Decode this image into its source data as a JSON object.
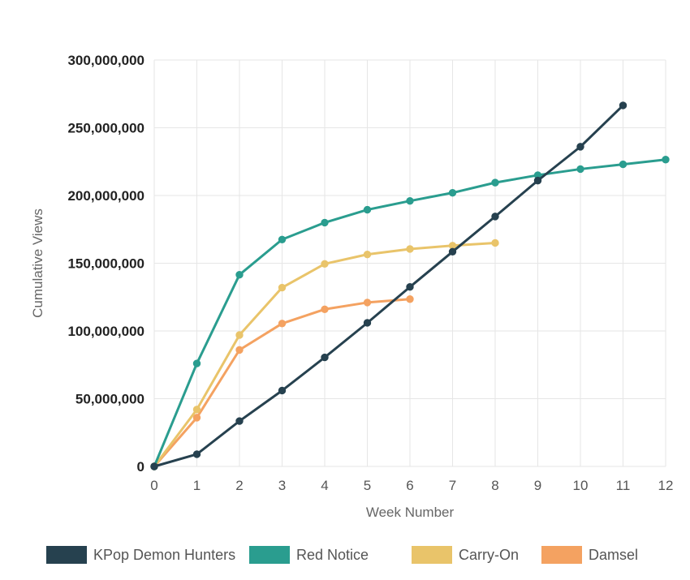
{
  "chart_data": {
    "type": "line",
    "title": "",
    "xlabel": "Week Number",
    "ylabel": "Cumulative Views",
    "xlim": [
      0,
      12
    ],
    "ylim": [
      0,
      300000000
    ],
    "x_ticks": [
      0,
      1,
      2,
      3,
      4,
      5,
      6,
      7,
      8,
      9,
      10,
      11,
      12
    ],
    "y_ticks": [
      0,
      50000000,
      100000000,
      150000000,
      200000000,
      250000000,
      300000000
    ],
    "y_tick_labels": [
      "0",
      "50,000,000",
      "100,000,000",
      "150,000,000",
      "200,000,000",
      "250,000,000",
      "300,000,000"
    ],
    "grid": true,
    "legend_position": "bottom",
    "series": [
      {
        "name": "KPop Demon Hunters",
        "color": "#26414f",
        "x": [
          0,
          1,
          2,
          3,
          4,
          5,
          6,
          7,
          8,
          9,
          10,
          11
        ],
        "values": [
          0,
          9000000,
          33500000,
          56000000,
          80500000,
          106000000,
          132500000,
          158500000,
          184500000,
          211000000,
          236000000,
          266500000
        ]
      },
      {
        "name": "Red Notice",
        "color": "#2a9d8f",
        "x": [
          0,
          1,
          2,
          3,
          4,
          5,
          6,
          7,
          8,
          9,
          10,
          11,
          12
        ],
        "values": [
          0,
          76000000,
          141500000,
          167500000,
          180000000,
          189500000,
          196000000,
          202000000,
          209500000,
          215000000,
          219500000,
          223000000,
          226500000
        ]
      },
      {
        "name": "Carry-On",
        "color": "#e9c46a",
        "x": [
          0,
          1,
          2,
          3,
          4,
          5,
          6,
          7,
          8
        ],
        "values": [
          0,
          42000000,
          97000000,
          132000000,
          149500000,
          156500000,
          160500000,
          163000000,
          165000000
        ]
      },
      {
        "name": "Damsel",
        "color": "#f4a261",
        "x": [
          0,
          1,
          2,
          3,
          4,
          5,
          6
        ],
        "values": [
          0,
          36000000,
          86000000,
          105500000,
          116000000,
          121000000,
          123500000
        ]
      }
    ]
  }
}
